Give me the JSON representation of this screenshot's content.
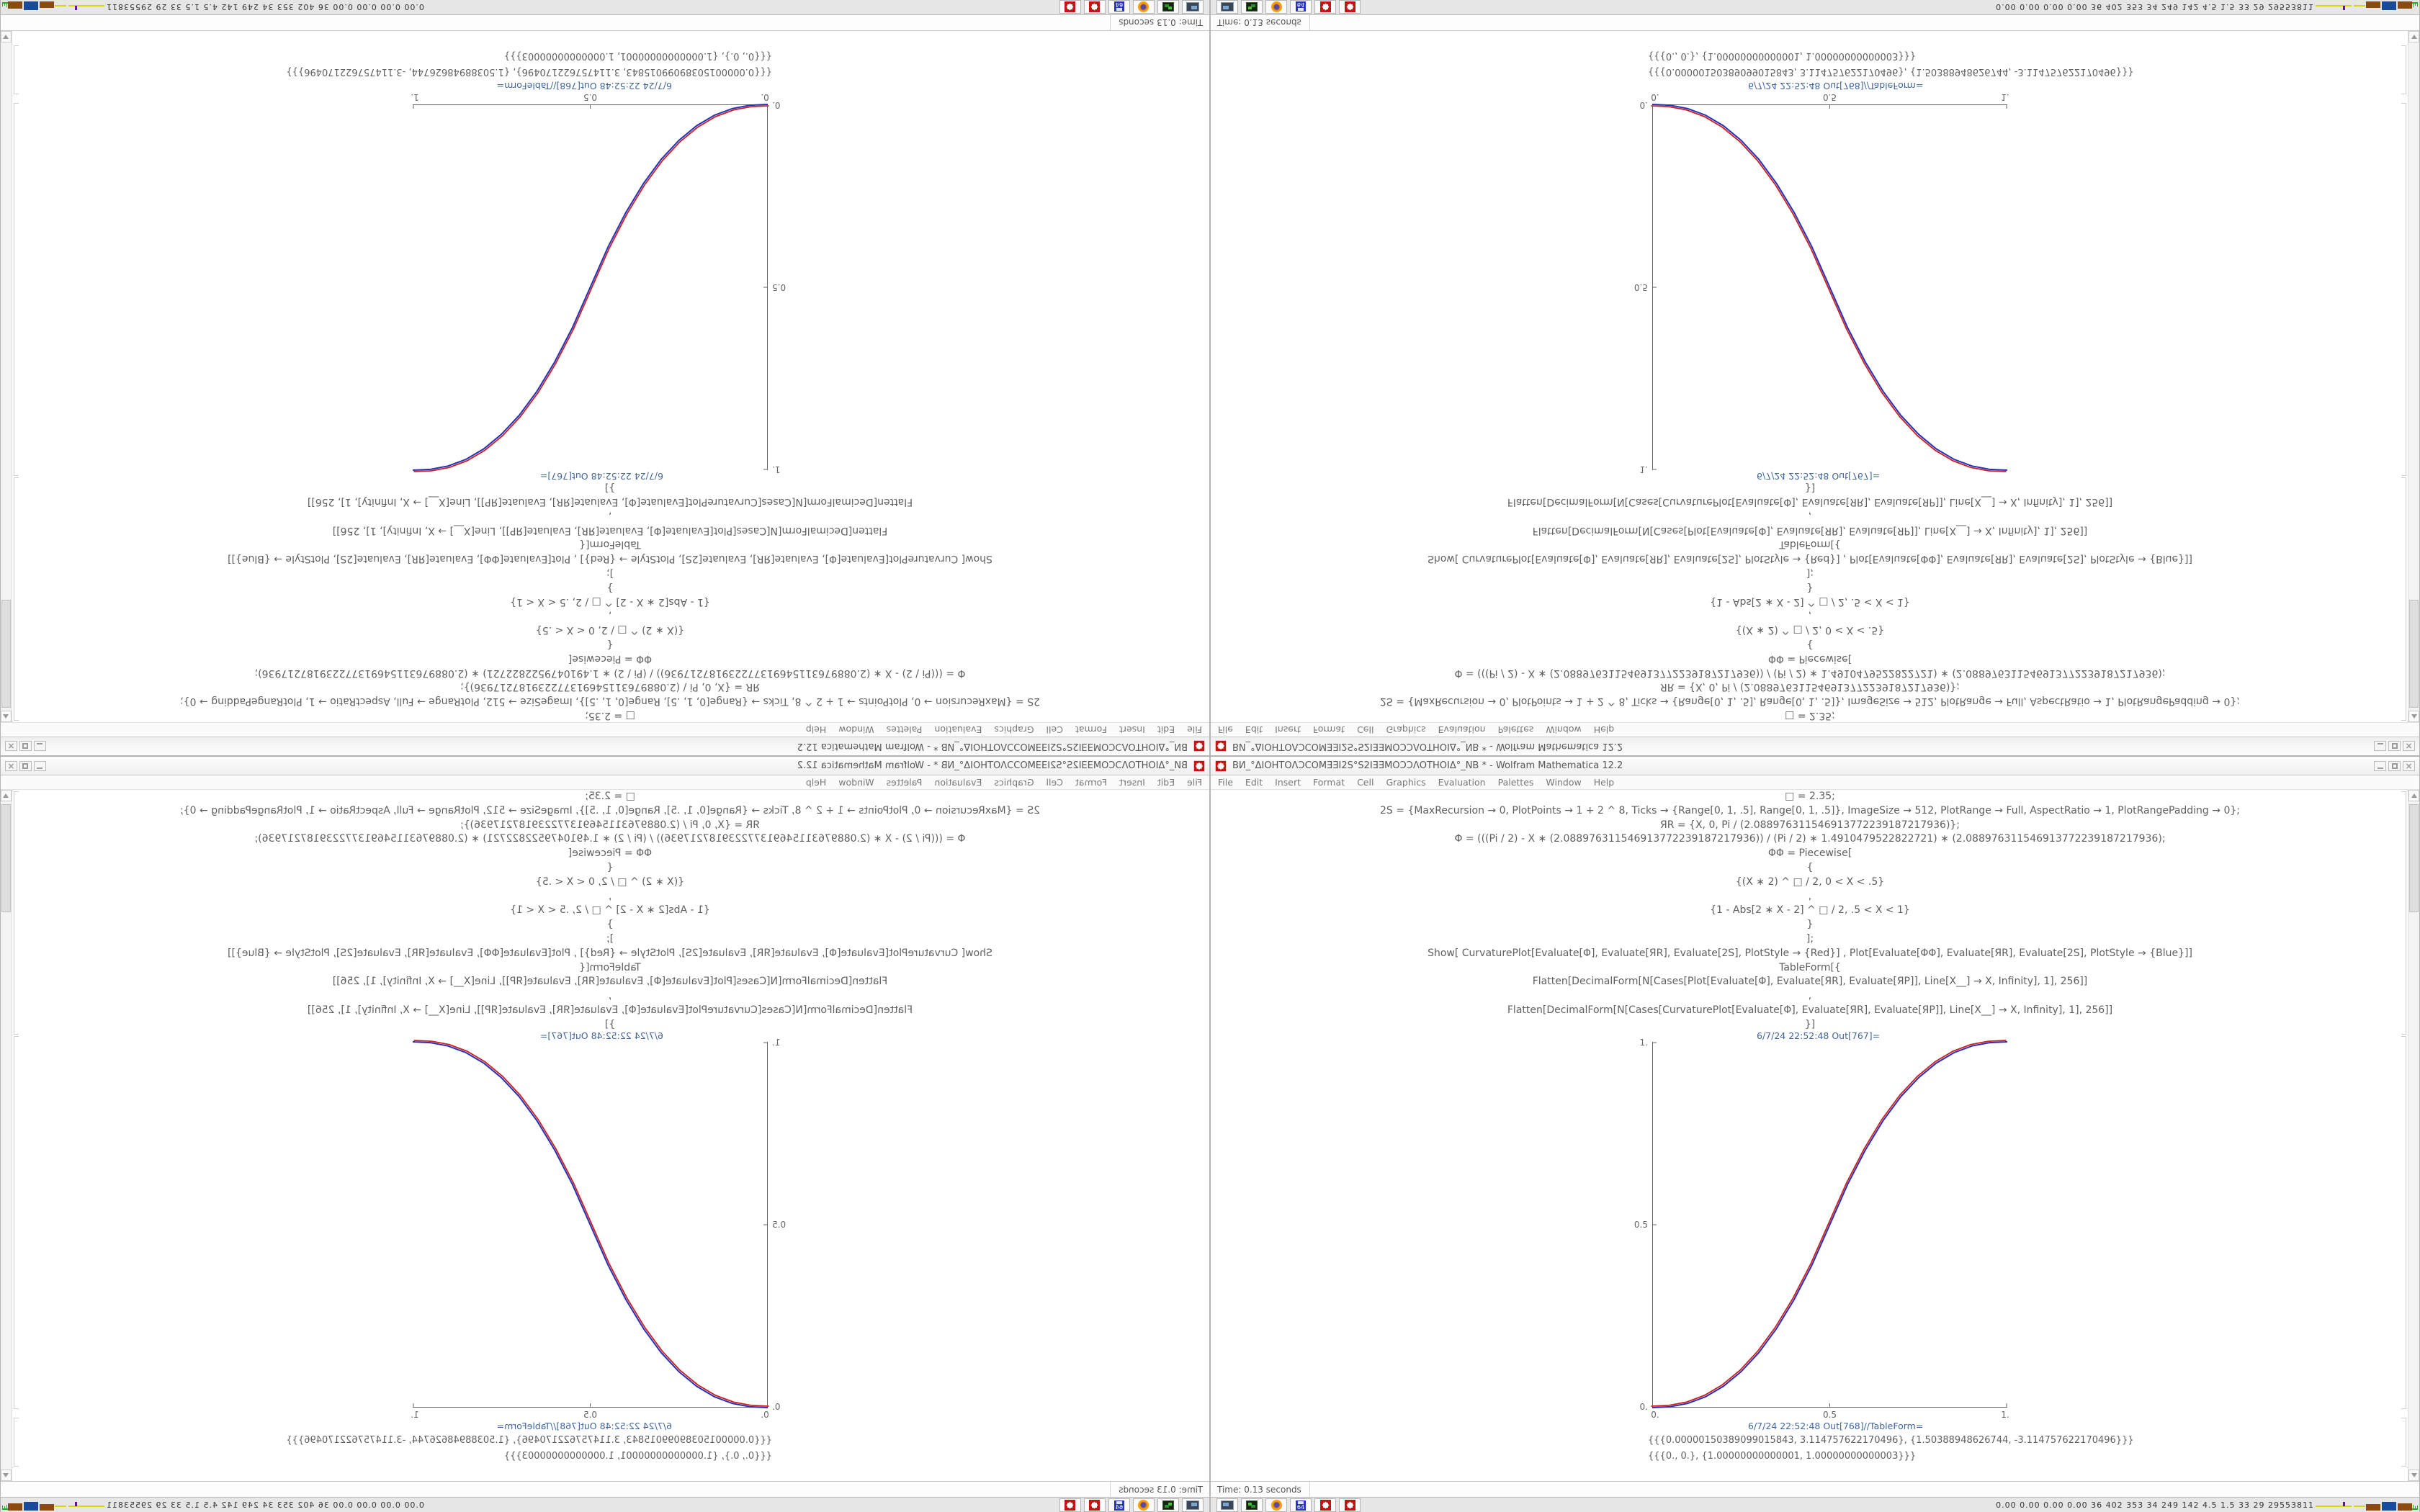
{
  "desktop": {
    "titlebar": {
      "title": "ВИ_°ΔIOHTOΛƆCOMƎƎI2S°S2IƎƎMOƆƆΛOTHOIΔ°_NB * - Wolfram Mathematica 12.2",
      "close_glyph": "×"
    },
    "menu": {
      "items": [
        "File",
        "Edit",
        "Insert",
        "Format",
        "Cell",
        "Graphics",
        "Evaluation",
        "Palettes",
        "Window",
        "Help"
      ]
    },
    "notebook": {
      "code_lines": [
        "□ = 2.35;",
        "2S = {MaxRecursion → 0, PlotPoints → 1 + 2 ^ 8, Ticks → {Range[0, 1, .5], Range[0, 1, .5]}, ImageSize → 512, PlotRange → Full, AspectRatio → 1, PlotRangePadding → 0};",
        "ЯR = {X, 0, Pi / (2.088976311546913772239187217936)};",
        "Φ = (((Pi / 2) - X ∗ (2.088976311546913772239187217936)) / (Pi / 2) ∗ 1.4910479522822721) ∗ (2.088976311546913772239187217936);",
        "ΦΦ = Piecewise[",
        "{",
        "{(X ∗ 2) ^ □ / 2, 0 < X < .5}",
        ",",
        "{1 - Abs[2 ∗ X - 2] ^ □ / 2, .5 < X < 1}",
        "}",
        "];",
        "Show[ CurvaturePlot[Evaluate[Φ], Evaluate[ЯR], Evaluate[2S], PlotStyle → {Red}] ,  Plot[Evaluate[ΦΦ], Evaluate[ЯR], Evaluate[2S], PlotStyle → {Blue}]]",
        "TableForm[{",
        "Flatten[DecimalForm[N[Cases[Plot[Evaluate[Φ], Evaluate[ЯR], Evaluate[ЯP]], Line[X__] → X, Infinity], 1], 256]]",
        ",",
        "Flatten[DecimalForm[N[Cases[CurvaturePlot[Evaluate[Φ], Evaluate[ЯR], Evaluate[ЯP]], Line[X__] → X, Infinity], 1], 256]]",
        "}]"
      ],
      "out_plot_label": "6/7/24 22:52:48 Out[767]=",
      "out_table_label": "6/7/24 22:52:48 Out[768]//TableForm=",
      "table_rows": [
        "{{{0.00000150389099015843, 3.114757622170496}, {1.50388948626744, -3.114757622170496}}}",
        "{{{0., 0.}, {1.00000000000001, 1.00000000000003}}}"
      ]
    },
    "status": {
      "time_label": "Time: 0.13 seconds"
    },
    "taskbar": {
      "icons": [
        "terminal",
        "emulator",
        "firefox",
        "floppy-64",
        "mathematica",
        "mathematica"
      ],
      "floppy_label": "64",
      "monitor_text": "0.00 0.00 0.00 0.00  36 402 353 34 249 142 4.5 1.5 33 29 29553811"
    }
  },
  "chart_data": {
    "type": "line",
    "title": "",
    "xlabel": "",
    "ylabel": "",
    "xlim": [
      0,
      1
    ],
    "ylim": [
      0,
      1
    ],
    "grid": false,
    "legend": "none",
    "x_tick_labels": [
      "0.",
      "0.5",
      "1."
    ],
    "y_tick_labels": [
      "1.",
      "0.5",
      "0."
    ],
    "x": [
      0,
      0.05,
      0.1,
      0.15,
      0.2,
      0.25,
      0.3,
      0.35,
      0.4,
      0.45,
      0.5,
      0.55,
      0.6,
      0.65,
      0.7,
      0.75,
      0.8,
      0.85,
      0.9,
      0.95,
      1
    ],
    "series": [
      {
        "name": "CurvaturePlot (Red)",
        "color": "#cc2020",
        "values": [
          0,
          0.0022,
          0.0114,
          0.0295,
          0.058,
          0.098,
          0.15,
          0.216,
          0.296,
          0.39,
          0.5,
          0.61,
          0.704,
          0.784,
          0.85,
          0.902,
          0.942,
          0.9705,
          0.9886,
          0.9978,
          1
        ]
      },
      {
        "name": "Plot (Blue)",
        "color": "#2431b8",
        "values": [
          0,
          0.0022,
          0.0114,
          0.0295,
          0.058,
          0.098,
          0.15,
          0.216,
          0.296,
          0.39,
          0.5,
          0.61,
          0.704,
          0.784,
          0.85,
          0.902,
          0.942,
          0.9705,
          0.9886,
          0.9978,
          1
        ]
      }
    ],
    "note": "S-curve Piecewise {(X∗2)^□/2, 0<X<.5} / {1-Abs[2∗X-2]^□/2, .5<X<1} with □=2.35; red and blue curves overlap. Screenshot shows same desktop 4x: identity (bottom-right), mirror-X (bottom-left), mirror-Y (top-right), rotated 180° (top-left)."
  }
}
